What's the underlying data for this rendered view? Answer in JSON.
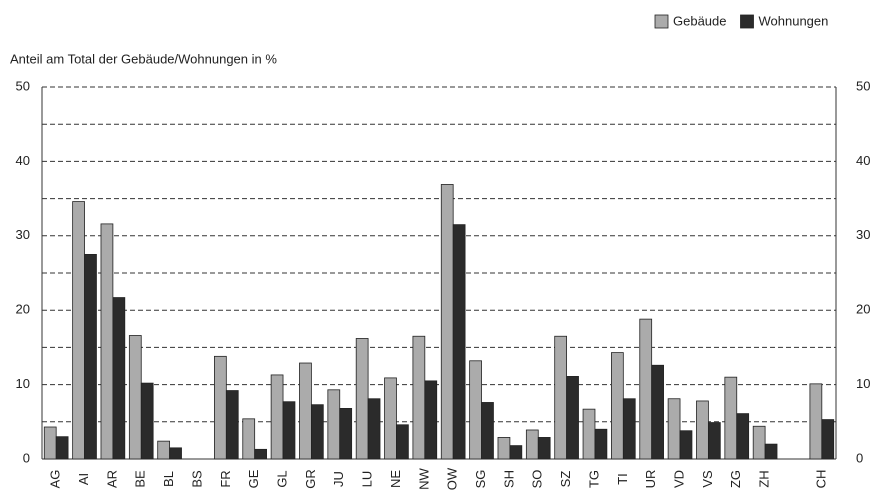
{
  "chart_data": {
    "type": "bar",
    "y_label": "Anteil am Total der Gebäude/Wohnungen in %",
    "categories": [
      "AG",
      "AI",
      "AR",
      "BE",
      "BL",
      "BS",
      "FR",
      "GE",
      "GL",
      "GR",
      "JU",
      "LU",
      "NE",
      "NW",
      "OW",
      "SG",
      "SH",
      "SO",
      "SZ",
      "TG",
      "TI",
      "UR",
      "VD",
      "VS",
      "ZG",
      "ZH",
      null,
      "CH"
    ],
    "series": [
      {
        "name": "Gebäude",
        "color": "#ababab",
        "values": [
          4.3,
          34.6,
          31.6,
          16.6,
          2.4,
          0,
          13.8,
          5.4,
          11.3,
          12.9,
          9.3,
          16.2,
          10.9,
          16.5,
          36.9,
          13.2,
          2.9,
          3.9,
          16.5,
          6.7,
          14.3,
          18.8,
          8.1,
          7.8,
          11.0,
          4.4,
          null,
          10.1
        ]
      },
      {
        "name": "Wohnungen",
        "color": "#2b2b2b",
        "values": [
          3.0,
          27.5,
          21.7,
          10.2,
          1.5,
          0,
          9.2,
          1.3,
          7.7,
          7.3,
          6.8,
          8.1,
          4.6,
          10.5,
          31.5,
          7.6,
          1.8,
          2.9,
          11.1,
          4.0,
          8.1,
          12.6,
          3.8,
          4.9,
          6.1,
          2.0,
          null,
          5.3
        ]
      }
    ],
    "ylim": [
      0,
      50
    ],
    "yticks": [
      0,
      10,
      20,
      30,
      40,
      50
    ],
    "minor_yticks": [
      5,
      15,
      25,
      35,
      45
    ],
    "grid": true,
    "legend": "top-right",
    "right_axis": true
  }
}
